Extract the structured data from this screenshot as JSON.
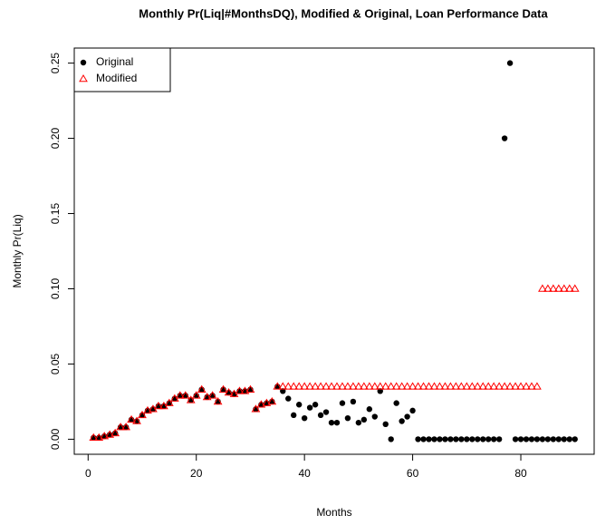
{
  "chart_data": {
    "type": "scatter",
    "title": "Monthly Pr(Liq|#MonthsDQ), Modified & Original, Loan Performance Data",
    "x_label": "Months",
    "y_label": "Monthly Pr(Liq)",
    "x": [
      1,
      2,
      3,
      4,
      5,
      6,
      7,
      8,
      9,
      10,
      11,
      12,
      13,
      14,
      15,
      16,
      17,
      18,
      19,
      20,
      21,
      22,
      23,
      24,
      25,
      26,
      27,
      28,
      29,
      30,
      31,
      32,
      33,
      34,
      35,
      36,
      37,
      38,
      39,
      40,
      41,
      42,
      43,
      44,
      45,
      46,
      47,
      48,
      49,
      50,
      51,
      52,
      53,
      54,
      55,
      56,
      57,
      58,
      59,
      60,
      61,
      62,
      63,
      64,
      65,
      66,
      67,
      68,
      69,
      70,
      71,
      72,
      73,
      74,
      75,
      76,
      77,
      78,
      79,
      80,
      81,
      82,
      83,
      84,
      85,
      86,
      87,
      88,
      89,
      90
    ],
    "series": [
      {
        "name": "Original",
        "color": "#000000",
        "marker": "circle",
        "values": [
          0.001,
          0.001,
          0.002,
          0.003,
          0.004,
          0.008,
          0.008,
          0.013,
          0.012,
          0.016,
          0.019,
          0.02,
          0.022,
          0.022,
          0.024,
          0.027,
          0.029,
          0.029,
          0.026,
          0.029,
          0.033,
          0.028,
          0.029,
          0.025,
          0.033,
          0.031,
          0.03,
          0.032,
          0.032,
          0.033,
          0.02,
          0.023,
          0.024,
          0.025,
          0.035,
          0.032,
          0.027,
          0.016,
          0.023,
          0.014,
          0.021,
          0.023,
          0.016,
          0.018,
          0.011,
          0.011,
          0.024,
          0.014,
          0.025,
          0.011,
          0.013,
          0.02,
          0.015,
          0.032,
          0.01,
          0,
          0.024,
          0.012,
          0.015,
          0.019,
          0,
          0,
          0,
          0,
          0,
          0,
          0,
          0,
          0,
          0,
          0,
          0,
          0,
          0,
          0,
          0,
          0.2,
          0.25,
          0,
          0,
          0,
          0,
          0,
          0,
          0,
          0,
          0,
          0,
          0,
          0
        ]
      },
      {
        "name": "Modified",
        "color": "#ff0000",
        "marker": "triangle",
        "values": [
          0.001,
          0.001,
          0.002,
          0.003,
          0.004,
          0.008,
          0.008,
          0.013,
          0.012,
          0.016,
          0.019,
          0.02,
          0.022,
          0.022,
          0.024,
          0.027,
          0.029,
          0.029,
          0.026,
          0.029,
          0.033,
          0.028,
          0.029,
          0.025,
          0.033,
          0.031,
          0.03,
          0.032,
          0.032,
          0.033,
          0.02,
          0.023,
          0.024,
          0.025,
          0.035,
          0.035,
          0.035,
          0.035,
          0.035,
          0.035,
          0.035,
          0.035,
          0.035,
          0.035,
          0.035,
          0.035,
          0.035,
          0.035,
          0.035,
          0.035,
          0.035,
          0.035,
          0.035,
          0.035,
          0.035,
          0.035,
          0.035,
          0.035,
          0.035,
          0.035,
          0.035,
          0.035,
          0.035,
          0.035,
          0.035,
          0.035,
          0.035,
          0.035,
          0.035,
          0.035,
          0.035,
          0.035,
          0.035,
          0.035,
          0.035,
          0.035,
          0.035,
          0.035,
          0.035,
          0.035,
          0.035,
          0.035,
          0.035,
          0.1,
          0.1,
          0.1,
          0.1,
          0.1,
          0.1,
          0.1
        ]
      }
    ],
    "xlim": [
      -2.56,
      93.56
    ],
    "xticks": [
      0,
      20,
      40,
      60,
      80
    ],
    "ylim": [
      -0.01,
      0.26
    ],
    "yticks": [
      {
        "value": 0,
        "label": "0.00"
      },
      {
        "value": 0.05,
        "label": "0.05"
      },
      {
        "value": 0.1,
        "label": "0.10"
      },
      {
        "value": 0.15,
        "label": "0.15"
      },
      {
        "value": 0.2,
        "label": "0.20"
      },
      {
        "value": 0.25,
        "label": "0.25"
      }
    ],
    "legend": "top-left"
  }
}
